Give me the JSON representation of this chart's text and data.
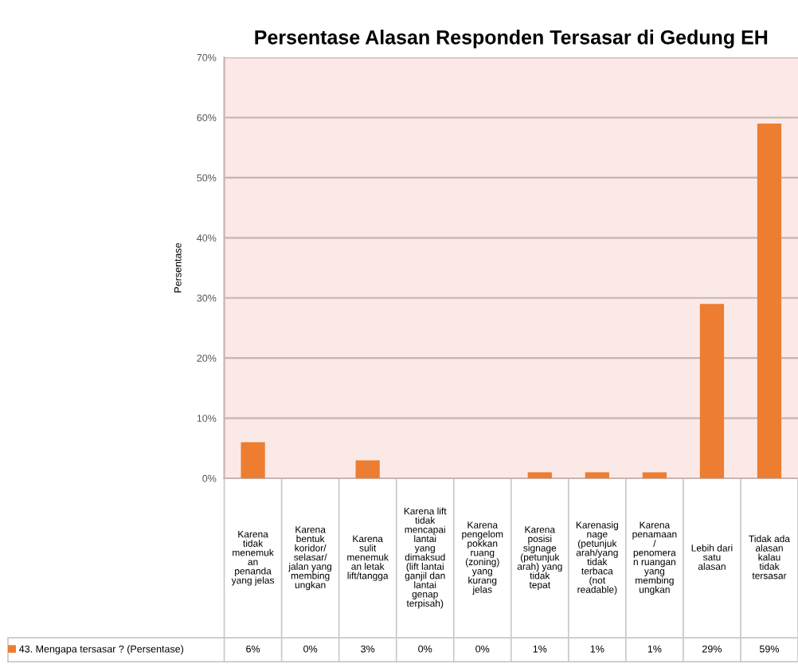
{
  "chart_data": {
    "type": "bar",
    "title": "Persentase Alasan Responden Tersasar di Gedung EH",
    "ylabel": "Persentase",
    "categories": [
      "Karena\ntidak\nmenemuk\nan\npenanda\nyang jelas",
      "Karena\nbentuk\nkoridor/\nselasar/\njalan yang\nmembing\nungkan",
      "Karena\nsulit\nmenemuk\nan letak\nlift/tangga",
      "Karena lift\ntidak\nmencapai\nlantai\nyang\ndimaksud\n(lift lantai\nganjil dan\nlantai\ngenap\nterpisah)",
      "Karena\npengelom\npokkan\nruang\n(zoning)\nyang\nkurang\njelas",
      "Karena\nposisi\nsignage\n(petunjuk\narah) yang\ntidak\ntepat",
      "Karenasig\nnage\n(petunjuk\narah/yang\ntidak\nterbaca\n(not\nreadable)",
      "Karena\npenamaan\n/\npenomera\nn ruangan\nyang\nmembing\nungkan",
      "Lebih dari\nsatu\nalasan",
      "Tidak ada\nalasan\nkalau\ntidak\ntersasar"
    ],
    "series": [
      {
        "name": "43. Mengapa tersasar ? (Persentase)",
        "color": "#ed7d31",
        "values": [
          6,
          0,
          3,
          0,
          0,
          1,
          1,
          1,
          29,
          59
        ],
        "value_labels": [
          "6%",
          "0%",
          "3%",
          "0%",
          "0%",
          "1%",
          "1%",
          "1%",
          "29%",
          "59%"
        ]
      }
    ],
    "ylim": [
      0,
      70
    ],
    "yticks": [
      {
        "value": 0,
        "label": "0%"
      },
      {
        "value": 10,
        "label": "10%"
      },
      {
        "value": 20,
        "label": "20%"
      },
      {
        "value": 30,
        "label": "30%"
      },
      {
        "value": 40,
        "label": "40%"
      },
      {
        "value": 50,
        "label": "50%"
      },
      {
        "value": 60,
        "label": "60%"
      },
      {
        "value": 70,
        "label": "70%"
      }
    ],
    "grid": "y",
    "legend": "bottom"
  }
}
